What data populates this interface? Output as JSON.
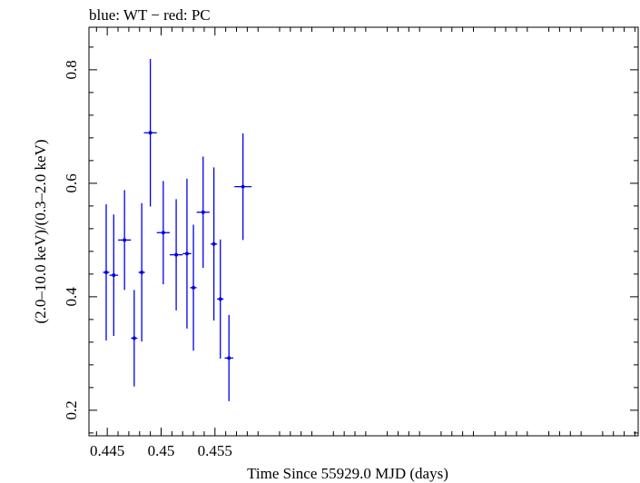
{
  "chart_data": {
    "type": "scatter",
    "title": "blue: WT − red: PC",
    "xlabel": "Time Since 55929.0 MJD (days)",
    "ylabel": "(2.0–10.0 keV)/(0.3–2.0 keV)",
    "xlim": [
      0.4433,
      0.4943
    ],
    "ylim": [
      0.155,
      0.875
    ],
    "xticks": [
      {
        "value": 0.445,
        "label": "0.445"
      },
      {
        "value": 0.45,
        "label": "0.45"
      },
      {
        "value": 0.455,
        "label": "0.455"
      }
    ],
    "yticks": [
      {
        "value": 0.2,
        "label": "0.2"
      },
      {
        "value": 0.4,
        "label": "0.4"
      },
      {
        "value": 0.6,
        "label": "0.6"
      },
      {
        "value": 0.8,
        "label": "0.8"
      }
    ],
    "grid": false,
    "series": [
      {
        "color": "#0000ee",
        "points": [
          {
            "x": 0.4449,
            "xerr": 0.0003,
            "y": 0.443,
            "yerr": 0.12
          },
          {
            "x": 0.4456,
            "xerr": 0.0004,
            "y": 0.438,
            "yerr": 0.107
          },
          {
            "x": 0.4466,
            "xerr": 0.0006,
            "y": 0.5,
            "yerr": 0.088
          },
          {
            "x": 0.4475,
            "xerr": 0.0003,
            "y": 0.327,
            "yerr": 0.085
          },
          {
            "x": 0.4482,
            "xerr": 0.0003,
            "y": 0.443,
            "yerr": 0.122
          },
          {
            "x": 0.449,
            "xerr": 0.0006,
            "y": 0.689,
            "yerr": 0.13
          },
          {
            "x": 0.4502,
            "xerr": 0.0006,
            "y": 0.513,
            "yerr": 0.091
          },
          {
            "x": 0.4514,
            "xerr": 0.0006,
            "y": 0.474,
            "yerr": 0.098
          },
          {
            "x": 0.4524,
            "xerr": 0.0004,
            "y": 0.476,
            "yerr": 0.132
          },
          {
            "x": 0.453,
            "xerr": 0.0003,
            "y": 0.416,
            "yerr": 0.111
          },
          {
            "x": 0.4539,
            "xerr": 0.0006,
            "y": 0.549,
            "yerr": 0.098
          },
          {
            "x": 0.4549,
            "xerr": 0.0003,
            "y": 0.493,
            "yerr": 0.135
          },
          {
            "x": 0.4555,
            "xerr": 0.0003,
            "y": 0.396,
            "yerr": 0.105
          },
          {
            "x": 0.4563,
            "xerr": 0.0004,
            "y": 0.292,
            "yerr": 0.076
          },
          {
            "x": 0.4576,
            "xerr": 0.0008,
            "y": 0.594,
            "yerr": 0.094
          }
        ]
      }
    ]
  }
}
